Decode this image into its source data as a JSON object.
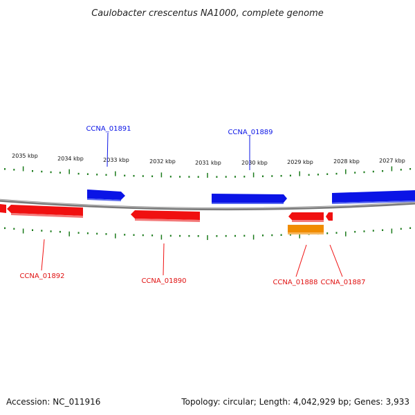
{
  "title": "Caulobacter crescentus NA1000, complete genome",
  "colors": {
    "forward": "#0a14e6",
    "reverse": "#f01010",
    "other": "#f08c00",
    "tick": "#1a7a1a",
    "backbone": "#8a8a8a"
  },
  "scale_labels": [
    "2035 kbp",
    "2034 kbp",
    "2033 kbp",
    "2032 kbp",
    "2031 kbp",
    "2030 kbp",
    "2029 kbp",
    "2028 kbp",
    "2027 kbp"
  ],
  "genes": [
    {
      "label": "CCNA_01891",
      "strand": "forward"
    },
    {
      "label": "CCNA_01889",
      "strand": "forward"
    },
    {
      "label": "CCNA_01892",
      "strand": "reverse"
    },
    {
      "label": "CCNA_01890",
      "strand": "reverse"
    },
    {
      "label": "CCNA_01888",
      "strand": "reverse"
    },
    {
      "label": "CCNA_01887",
      "strand": "reverse"
    }
  ],
  "footer": {
    "accession": "Accession: NC_011916",
    "stats": "Topology: circular; Length: 4,042,929 bp; Genes: 3,933"
  }
}
